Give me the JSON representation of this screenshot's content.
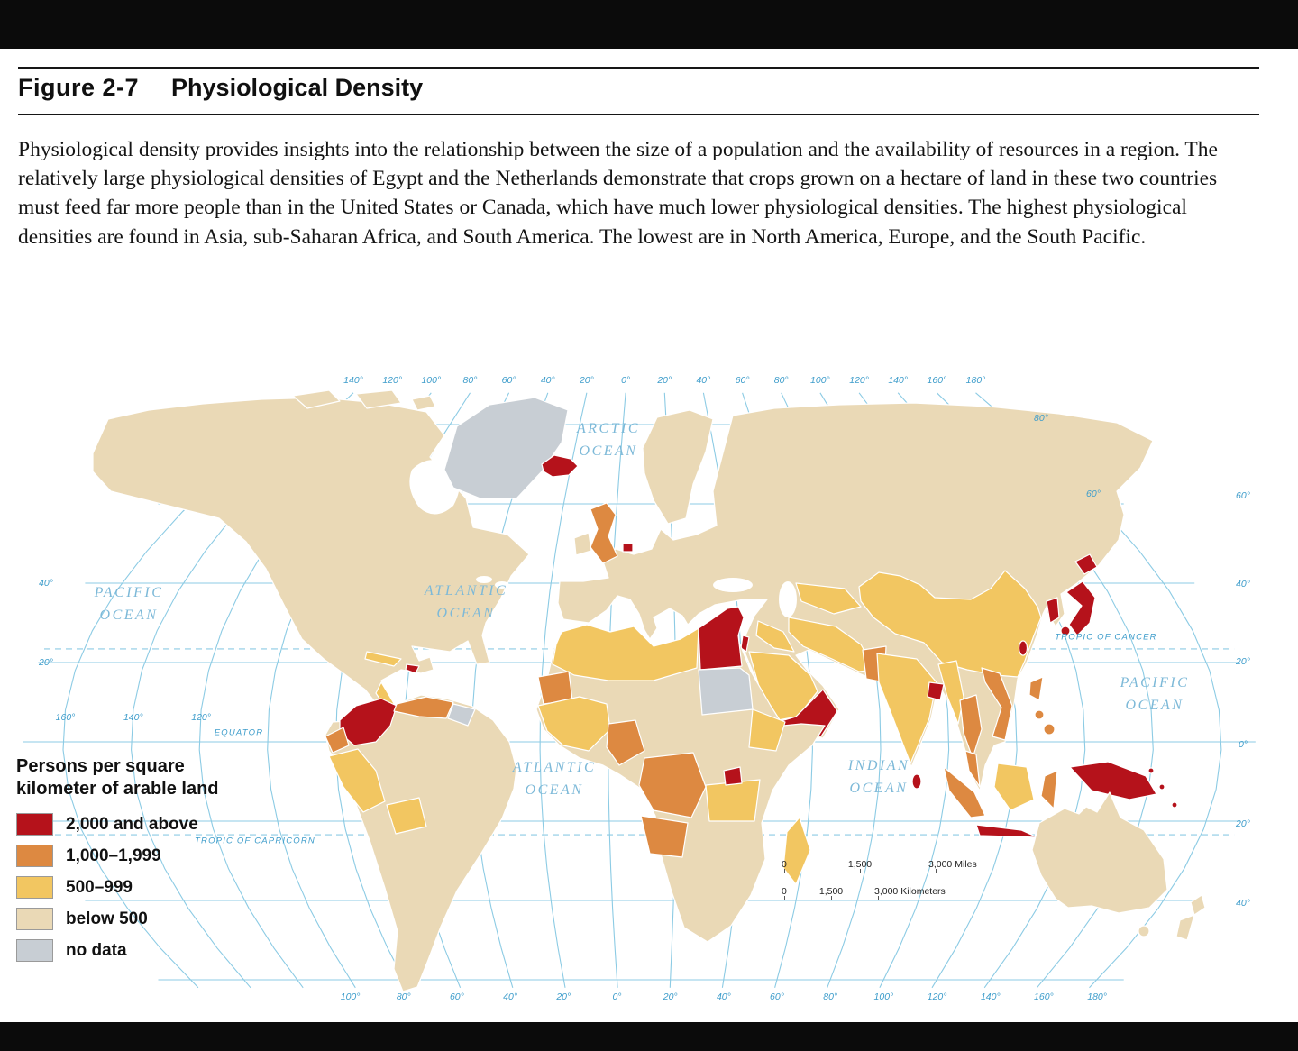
{
  "page": {
    "figure_label": "Figure 2-7",
    "figure_title": "Physiological Density",
    "caption": "Physiological density provides insights into the relationship between the size of a population and the availability of resources in a region. The relatively large physiological densities of Egypt and the Netherlands demonstrate that crops grown on a hectare of land in these two countries must feed far more people than in the United States or Canada, which have much lower physiological densities. The highest physiological densities are found in Asia, sub-Saharan Africa, and South America. The lowest are in North America, Europe, and the South Pacific."
  },
  "legend": {
    "title": "Persons per square\nkilometer of arable land",
    "items": [
      {
        "label": "2,000 and above",
        "color": "#b5121b"
      },
      {
        "label": "1,000–1,999",
        "color": "#dd8941"
      },
      {
        "label": "500–999",
        "color": "#f2c661"
      },
      {
        "label": "below 500",
        "color": "#ead9b6"
      },
      {
        "label": "no data",
        "color": "#c8ced4"
      }
    ]
  },
  "map": {
    "colors": {
      "graticule": "#8ccbe4",
      "tick_label": "#3e9dcb",
      "ocean_label": "#7db9d8"
    },
    "ocean_labels": {
      "arctic": "ARCTIC\nOCEAN",
      "pacific_nw": "PACIFIC\nOCEAN",
      "atlantic_n": "ATLANTIC\nOCEAN",
      "atlantic_s": "ATLANTIC\nOCEAN",
      "indian": "INDIAN\nOCEAN",
      "pacific_se": "PACIFIC\nOCEAN"
    },
    "reference_lines": {
      "tropic_of_cancer": "TROPIC OF CANCER",
      "equator": "EQUATOR",
      "tropic_of_capricorn": "TROPIC OF CAPRICORN"
    },
    "ticks": {
      "top": [
        "140°",
        "120°",
        "100°",
        "80°",
        "60°",
        "40°",
        "20°",
        "0°",
        "20°",
        "40°",
        "60°",
        "80°",
        "100°",
        "120°",
        "140°",
        "160°",
        "180°"
      ],
      "bottom": [
        "100°",
        "80°",
        "60°",
        "40°",
        "20°",
        "0°",
        "20°",
        "40°",
        "60°",
        "80°",
        "100°",
        "120°",
        "140°",
        "160°",
        "180°"
      ],
      "left": [
        "40°",
        "20°"
      ],
      "right": [
        "60°",
        "40°",
        "20°",
        "0°",
        "20°",
        "40°"
      ],
      "west_cluster": [
        "160°",
        "140°",
        "120°"
      ],
      "top_right": [
        "80°",
        "60°"
      ]
    },
    "scale_bar": {
      "miles": {
        "start": "0",
        "mid": "1,500",
        "end": "3,000 Miles"
      },
      "kilometers": {
        "start": "0",
        "mid": "1,500",
        "end": "3,000 Kilometers"
      }
    }
  }
}
